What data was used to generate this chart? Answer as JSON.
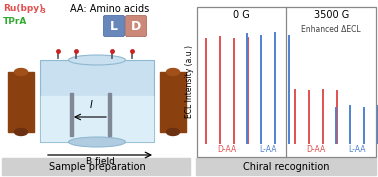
{
  "title_left": "Sample preparation",
  "title_right": "Chiral recognition",
  "label_rubpy": "Ru(bpy)",
  "label_rubpy_sub": "3",
  "label_tpra": "TPrA",
  "label_aa": "AA: Amino acids",
  "label_bfield": "B field",
  "label_current": "I",
  "panel1_title": "0 G",
  "panel2_title": "3500 G",
  "panel2_subtitle": "Enhanced ΔECL",
  "ylabel": "ECL Intensity (a.u.)",
  "daa_label": "D-AA",
  "laa_label": "L-AA",
  "red_color": "#e05050",
  "blue_color": "#5080d0",
  "green_color": "#30aa30",
  "background_gray": "#d0d0d0",
  "bar_red_0g": [
    0.88,
    0.9,
    0.88,
    0.89
  ],
  "bar_blue_0g": [
    0.92,
    0.91,
    0.93,
    0.91
  ],
  "bar_red_3500g": [
    0.45,
    0.44,
    0.45,
    0.44
  ],
  "bar_blue_3500g": [
    0.3,
    0.31,
    0.3,
    0.31
  ],
  "vessel_color": "#c8e0f0",
  "vessel_edge": "#90b8d0",
  "magnet_color": "#8B4010",
  "magnet_top": "#a05018",
  "magnet_dark": "#6B3010"
}
